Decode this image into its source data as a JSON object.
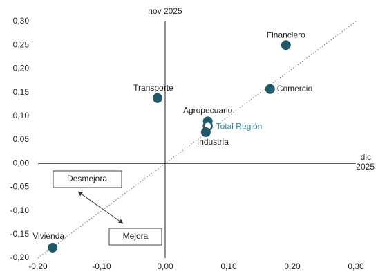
{
  "chart_data": {
    "type": "scatter",
    "x_label": "dic 2025",
    "y_label": "nov 2025",
    "points": [
      {
        "label": "Financiero",
        "x": 0.19,
        "y": 0.25
      },
      {
        "label": "Comercio",
        "x": 0.165,
        "y": 0.157
      },
      {
        "label": "Transporte",
        "x": -0.012,
        "y": 0.138
      },
      {
        "label": "Agropecuario",
        "x": 0.067,
        "y": 0.089
      },
      {
        "label": "Total Región",
        "x": 0.067,
        "y": 0.079
      },
      {
        "label": "Industria",
        "x": 0.064,
        "y": 0.066
      },
      {
        "label": "Vivienda",
        "x": -0.177,
        "y": -0.178
      }
    ],
    "color": "#1f5a6b",
    "highlight_color": "#2f7f98",
    "annotations": [
      "Desmejora",
      "Mejora"
    ],
    "xlim": [
      -0.2,
      0.3
    ],
    "xticks": [
      {
        "value": -0.2,
        "label": "-0,20"
      },
      {
        "value": -0.1,
        "label": "-0,10"
      },
      {
        "value": 0,
        "label": "0,00"
      },
      {
        "value": 0.1,
        "label": "0,10"
      },
      {
        "value": 0.2,
        "label": "0,20"
      },
      {
        "value": 0.3,
        "label": "0,30"
      }
    ],
    "ylim": [
      -0.2,
      0.3
    ],
    "yticks": [
      {
        "value": -0.2,
        "label": "-0,20"
      },
      {
        "value": -0.15,
        "label": "-0,15"
      },
      {
        "value": -0.1,
        "label": "-0,10"
      },
      {
        "value": -0.05,
        "label": "-0,05"
      },
      {
        "value": 0,
        "label": "0,00"
      },
      {
        "value": 0.05,
        "label": "0,05"
      },
      {
        "value": 0.1,
        "label": "0,10"
      },
      {
        "value": 0.15,
        "label": "0,15"
      },
      {
        "value": 0.2,
        "label": "0,20"
      },
      {
        "value": 0.25,
        "label": "0,25"
      },
      {
        "value": 0.3,
        "label": "0,30"
      }
    ]
  }
}
